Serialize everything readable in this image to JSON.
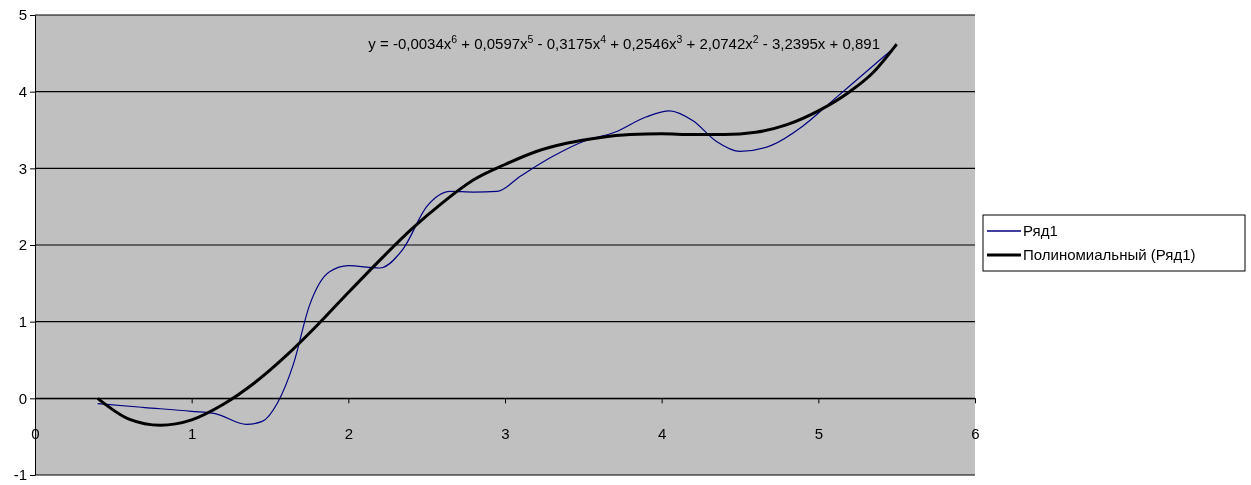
{
  "chart_data": {
    "type": "line",
    "xlim": [
      0,
      6
    ],
    "ylim": [
      -1,
      5
    ],
    "xticks": [
      0,
      1,
      2,
      3,
      4,
      5,
      6
    ],
    "yticks": [
      -1,
      0,
      1,
      2,
      3,
      4,
      5
    ],
    "grid": "y",
    "legend": "right",
    "marker": "none",
    "annotations": [
      "y = -0,0034x$^{6}$ + 0,0597x$^{5}$ - 0,3175x$^{4}$ + 0,2546x$^{3}$ + 2,0742x$^{2}$ - 3,2395x + 0,891"
    ],
    "series": [
      {
        "name": "Ряд1",
        "color": "#000080",
        "x": [
          0.4,
          0.7,
          1.0,
          1.15,
          1.35,
          1.45,
          1.55,
          1.65,
          1.75,
          1.88,
          2.0,
          2.2,
          2.35,
          2.5,
          2.65,
          2.8,
          2.95,
          3.1,
          3.3,
          3.5,
          3.7,
          3.9,
          4.05,
          4.2,
          4.35,
          4.5,
          4.7,
          4.9,
          5.1,
          5.3,
          5.5
        ],
        "values": [
          -0.07,
          -0.12,
          -0.17,
          -0.2,
          -0.34,
          -0.3,
          -0.05,
          0.45,
          1.2,
          1.65,
          1.73,
          1.7,
          1.95,
          2.5,
          2.7,
          2.69,
          2.7,
          2.9,
          3.15,
          3.35,
          3.47,
          3.67,
          3.75,
          3.62,
          3.35,
          3.22,
          3.3,
          3.55,
          3.9,
          4.25,
          4.6
        ]
      },
      {
        "name": "Полиномиальный (Ряд1)",
        "color": "#000000",
        "x": [
          0.4,
          0.6,
          0.8,
          1.0,
          1.2,
          1.4,
          1.6,
          1.8,
          2.0,
          2.2,
          2.4,
          2.6,
          2.8,
          3.0,
          3.2,
          3.4,
          3.6,
          3.8,
          4.0,
          4.2,
          4.4,
          4.6,
          4.8,
          5.0,
          5.2,
          5.35,
          5.5
        ],
        "values": [
          0,
          -0.27,
          -0.35,
          -0.28,
          -0.08,
          0.2,
          0.55,
          0.95,
          1.38,
          1.8,
          2.2,
          2.55,
          2.85,
          3.05,
          3.22,
          3.33,
          3.4,
          3.44,
          3.45,
          3.44,
          3.44,
          3.47,
          3.57,
          3.75,
          4.0,
          4.25,
          4.62
        ]
      }
    ]
  }
}
